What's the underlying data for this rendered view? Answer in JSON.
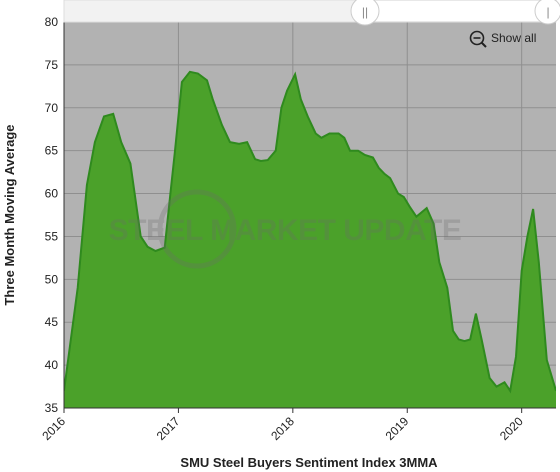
{
  "chart_data": {
    "type": "area",
    "xlabel": "SMU Steel Buyers Sentiment Index 3MMA",
    "ylabel": "Three Month Moving Average",
    "ylim": [
      35,
      80
    ],
    "xlim": [
      2016.0,
      2020.3
    ],
    "y_ticks": [
      35,
      40,
      45,
      50,
      55,
      60,
      65,
      70,
      75,
      80
    ],
    "x_ticks": [
      {
        "label": "2016",
        "value": 2016
      },
      {
        "label": "2017",
        "value": 2017
      },
      {
        "label": "2018",
        "value": 2018
      },
      {
        "label": "2019",
        "value": 2019
      },
      {
        "label": "2020",
        "value": 2020
      }
    ],
    "grid": true,
    "fill_color": "#4ba12a",
    "line_color": "#2f8a1e",
    "plot_background": "#b2b2b2",
    "series": [
      {
        "x": [
          2016.0,
          2016.05,
          2016.12,
          2016.2,
          2016.27,
          2016.35,
          2016.43,
          2016.5,
          2016.58,
          2016.67,
          2016.73,
          2016.8,
          2016.88,
          2016.93,
          2016.97,
          2017.03,
          2017.1,
          2017.17,
          2017.25,
          2017.3,
          2017.38,
          2017.45,
          2017.53,
          2017.6,
          2017.67,
          2017.72,
          2017.78,
          2017.85,
          2017.9,
          2017.95,
          2018.02,
          2018.07,
          2018.13,
          2018.2,
          2018.25,
          2018.32,
          2018.4,
          2018.45,
          2018.5,
          2018.57,
          2018.63,
          2018.7,
          2018.75,
          2018.8,
          2018.85,
          2018.92,
          2018.97,
          2019.02,
          2019.08,
          2019.17,
          2019.23,
          2019.28,
          2019.35,
          2019.4,
          2019.45,
          2019.5,
          2019.55,
          2019.6,
          2019.65,
          2019.72,
          2019.78,
          2019.85,
          2019.9,
          2019.95,
          2020.0,
          2020.05,
          2020.1,
          2020.15,
          2020.22,
          2020.3
        ],
        "y": [
          37,
          42,
          49,
          61,
          66,
          69,
          69.3,
          66,
          63.5,
          55,
          53.8,
          53.3,
          53.7,
          60,
          65,
          73,
          74.2,
          74.0,
          73.2,
          71,
          68,
          66,
          65.8,
          66,
          64,
          63.8,
          63.9,
          65,
          70,
          72,
          73.9,
          71,
          69,
          67,
          66.5,
          67,
          67,
          66.5,
          65,
          65,
          64.5,
          64.2,
          63,
          62.3,
          61.8,
          60,
          59.6,
          58.5,
          57.3,
          58.3,
          56.5,
          52,
          49,
          44,
          43,
          42.8,
          43,
          46,
          43,
          38.5,
          37.5,
          38,
          37,
          41,
          51,
          55,
          58.2,
          52,
          40.6,
          37
        ]
      }
    ],
    "watermark": "STEEL MARKET UPDATE"
  },
  "navigator": {
    "handle_glyph": "||",
    "handle_glyph_right": "|"
  },
  "toolbar": {
    "show_all_label": "Show all"
  },
  "icons": {
    "zoom_out": "zoom-out-icon"
  }
}
